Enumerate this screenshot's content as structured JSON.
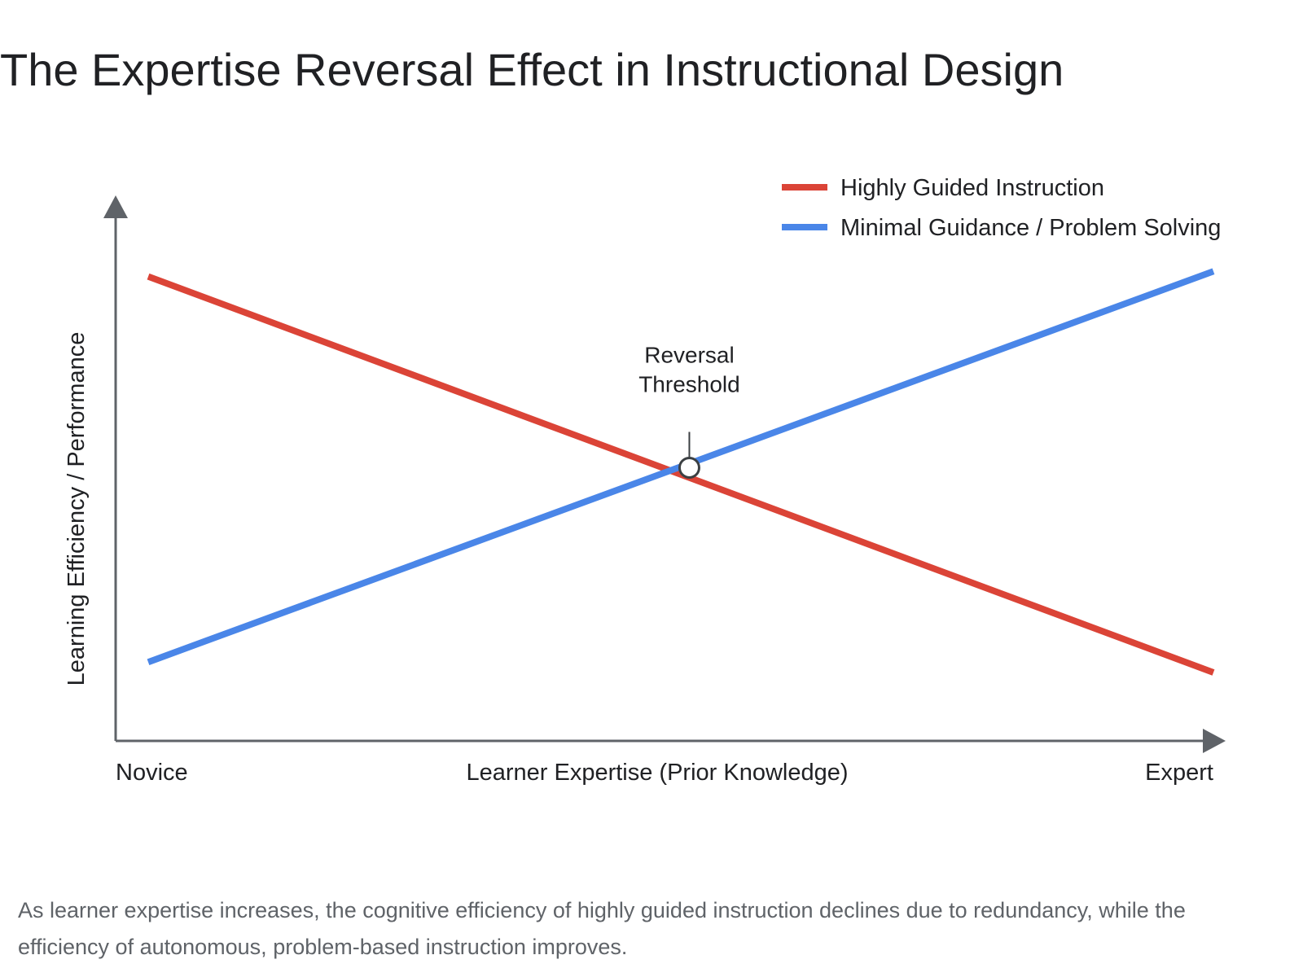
{
  "page": {
    "title": "The Expertise Reversal Effect in Instructional Design",
    "caption": "As learner expertise increases, the cognitive efficiency of highly guided instruction declines due to redundancy, while the efficiency of autonomous, problem-based instruction improves."
  },
  "chart_data": {
    "type": "line",
    "title": "",
    "xlabel": "Learner Expertise (Prior Knowledge)",
    "ylabel": "Learning Efficiency / Performance",
    "x_end_labels": [
      "Novice",
      "Expert"
    ],
    "xlim": [
      0,
      1
    ],
    "ylim": [
      0,
      1
    ],
    "grid": false,
    "legend_position": "top-right",
    "series": [
      {
        "name": "Highly Guided Instruction",
        "color": "#db4437",
        "x": [
          0,
          1
        ],
        "y": [
          0.86,
          0.1
        ]
      },
      {
        "name": "Minimal Guidance / Problem Solving",
        "color": "#4a86e8",
        "x": [
          0,
          1
        ],
        "y": [
          0.12,
          0.87
        ]
      }
    ],
    "annotations": [
      {
        "lines": [
          "Reversal",
          "Threshold"
        ],
        "x": 0.508,
        "y": 0.493
      }
    ]
  }
}
